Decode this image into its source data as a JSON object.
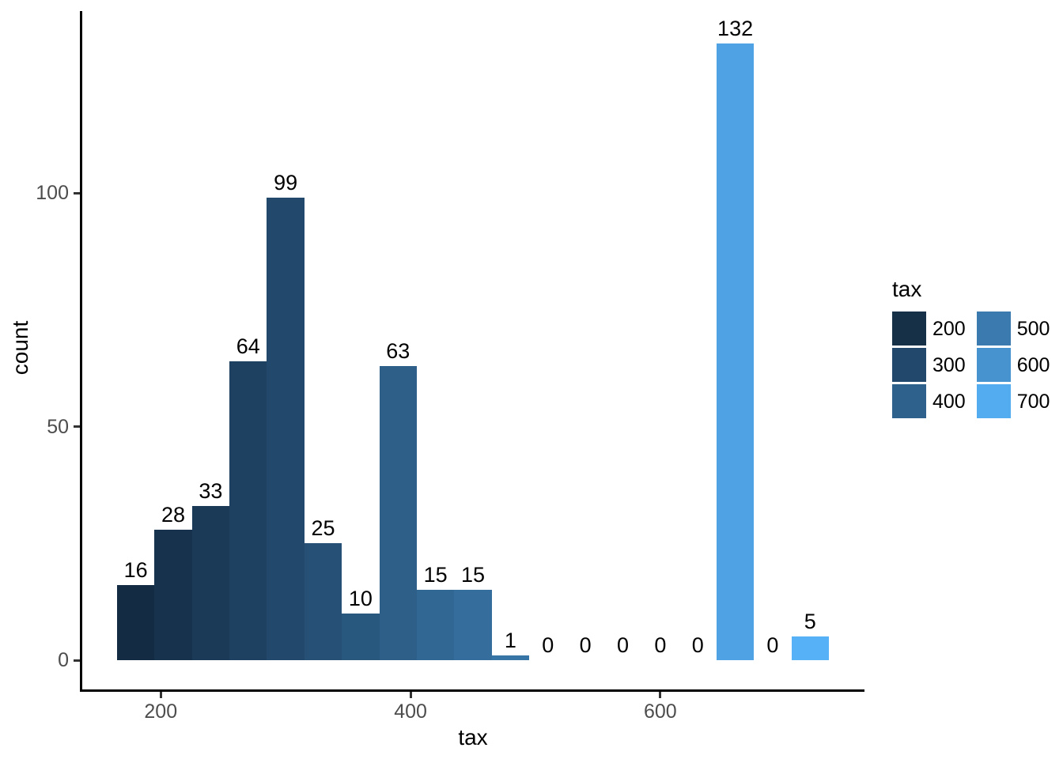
{
  "chart_data": {
    "type": "bar",
    "subtype": "histogram",
    "title": "",
    "xlabel": "tax",
    "ylabel": "count",
    "bins": {
      "start": 165,
      "width": 30
    },
    "bin_centers": [
      180,
      210,
      240,
      270,
      300,
      330,
      360,
      390,
      420,
      450,
      480,
      510,
      540,
      570,
      600,
      630,
      660,
      690,
      720
    ],
    "counts": [
      16,
      28,
      33,
      64,
      99,
      25,
      10,
      63,
      15,
      15,
      1,
      0,
      0,
      0,
      0,
      0,
      132,
      0,
      5
    ],
    "x_ticks": [
      200,
      400,
      600
    ],
    "y_ticks": [
      0,
      50,
      100
    ],
    "x_domain": [
      136.5,
      763.5
    ],
    "y_domain": [
      -6.6,
      138.6
    ],
    "grid": "off",
    "fill_gradient": {
      "low": "#132B43",
      "high": "#56B1F7",
      "domain": [
        180,
        720
      ]
    },
    "legend": {
      "title": "tax",
      "position": "right",
      "entries": [
        {
          "label": "200",
          "color": "#163048"
        },
        {
          "label": "300",
          "color": "#22496B"
        },
        {
          "label": "400",
          "color": "#2E628C"
        },
        {
          "label": "500",
          "color": "#3B7AAE"
        },
        {
          "label": "600",
          "color": "#4793CF"
        },
        {
          "label": "700",
          "color": "#54ACF0"
        }
      ]
    },
    "colors": {
      "axis_text": "#4D4D4D",
      "axis_line": "#000000",
      "tick_mark": "#333333",
      "bar_label_text": "#000000",
      "background": "#FFFFFF"
    }
  }
}
